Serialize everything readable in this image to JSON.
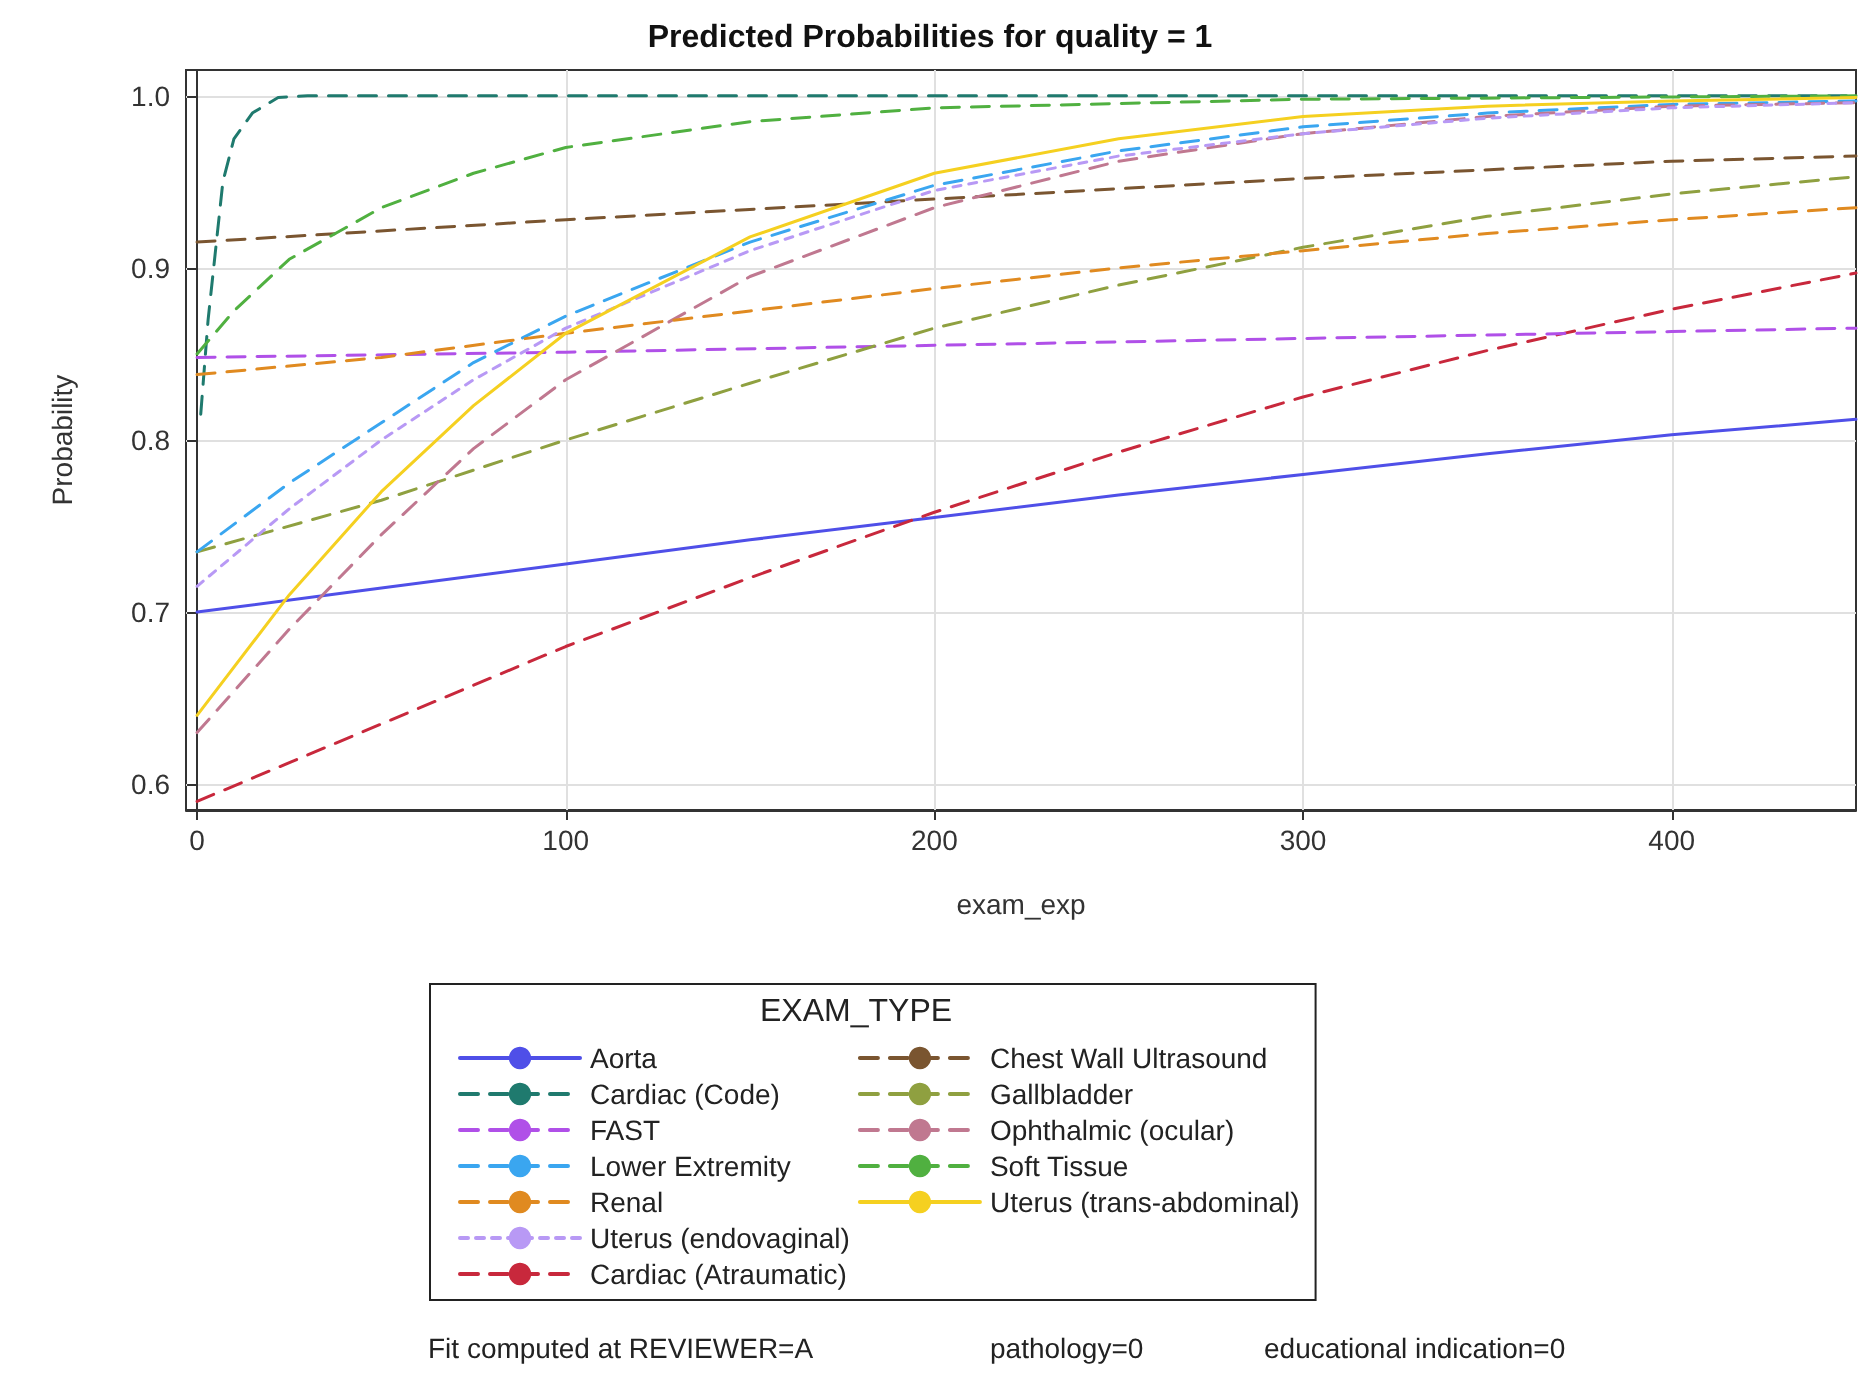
{
  "chart_data": {
    "type": "line",
    "title": "Predicted Probabilities for quality = 1",
    "xlabel": "exam_exp",
    "ylabel": "Probability",
    "legend_title": "EXAM_TYPE",
    "legend": "bottom",
    "grid": true,
    "marker": "none",
    "xlim": [
      -3,
      450
    ],
    "xticks": [
      0,
      100,
      200,
      300,
      400
    ],
    "ylim": [
      0.585,
      1.015
    ],
    "yticks": [
      0.6,
      0.7,
      0.8,
      0.9,
      {
        "value": 1,
        "label": "1.0"
      }
    ],
    "annotations": [
      "Fit computed at REVIEWER=A",
      "pathology=0",
      "educational indication=0"
    ],
    "series": [
      {
        "name": "Aorta",
        "color": "#4f4fe8",
        "line_style": "solid",
        "x": [
          0,
          50,
          100,
          150,
          200,
          250,
          300,
          350,
          400,
          450
        ],
        "values": [
          0.7,
          0.714,
          0.728,
          0.742,
          0.755,
          0.768,
          0.78,
          0.792,
          0.803,
          0.812
        ]
      },
      {
        "name": "Cardiac (Atraumatic)",
        "color": "#c8283c",
        "line_style": "dashed",
        "x": [
          0,
          50,
          100,
          150,
          200,
          250,
          300,
          350,
          400,
          450
        ],
        "values": [
          0.59,
          0.635,
          0.68,
          0.72,
          0.758,
          0.793,
          0.825,
          0.852,
          0.876,
          0.897
        ]
      },
      {
        "name": "Cardiac (Code)",
        "color": "#1f7a6e",
        "line_style": "dashed",
        "x": [
          1,
          3,
          5,
          7,
          10,
          15,
          22,
          30,
          450
        ],
        "values": [
          0.815,
          0.87,
          0.91,
          0.95,
          0.975,
          0.99,
          0.999,
          1.0,
          1.0
        ]
      },
      {
        "name": "Chest Wall Ultrasound",
        "color": "#7a5530",
        "line_style": "dashed",
        "x": [
          0,
          100,
          200,
          300,
          400,
          450
        ],
        "values": [
          0.915,
          0.928,
          0.94,
          0.952,
          0.962,
          0.965
        ]
      },
      {
        "name": "FAST",
        "color": "#b050e8",
        "line_style": "dashed",
        "x": [
          0,
          100,
          200,
          300,
          400,
          450
        ],
        "values": [
          0.848,
          0.851,
          0.855,
          0.859,
          0.863,
          0.865
        ]
      },
      {
        "name": "Gallbladder",
        "color": "#8fa040",
        "line_style": "dashed",
        "x": [
          0,
          50,
          100,
          150,
          200,
          250,
          300,
          350,
          400,
          450
        ],
        "values": [
          0.735,
          0.765,
          0.8,
          0.833,
          0.865,
          0.89,
          0.912,
          0.93,
          0.943,
          0.953
        ]
      },
      {
        "name": "Lower Extremity",
        "color": "#3aa6f0",
        "line_style": "dashed",
        "x": [
          0,
          25,
          50,
          75,
          100,
          150,
          200,
          250,
          300,
          350,
          400,
          450
        ],
        "values": [
          0.735,
          0.775,
          0.81,
          0.845,
          0.872,
          0.915,
          0.948,
          0.968,
          0.982,
          0.99,
          0.995,
          0.997
        ]
      },
      {
        "name": "Ophthalmic (ocular)",
        "color": "#c07890",
        "line_style": "dashed",
        "x": [
          0,
          25,
          50,
          75,
          100,
          150,
          200,
          250,
          300,
          350,
          400,
          450
        ],
        "values": [
          0.63,
          0.69,
          0.745,
          0.795,
          0.835,
          0.895,
          0.935,
          0.962,
          0.978,
          0.988,
          0.994,
          0.996
        ]
      },
      {
        "name": "Renal",
        "color": "#e08a20",
        "line_style": "dashed",
        "x": [
          0,
          50,
          100,
          150,
          200,
          250,
          300,
          350,
          400,
          450
        ],
        "values": [
          0.838,
          0.848,
          0.862,
          0.875,
          0.888,
          0.9,
          0.91,
          0.92,
          0.928,
          0.935
        ]
      },
      {
        "name": "Soft Tissue",
        "color": "#50b040",
        "line_style": "dashed",
        "x": [
          0,
          10,
          25,
          50,
          75,
          100,
          150,
          200,
          300,
          450
        ],
        "values": [
          0.85,
          0.875,
          0.905,
          0.935,
          0.955,
          0.97,
          0.985,
          0.993,
          0.998,
          1.0
        ]
      },
      {
        "name": "Uterus (endovaginal)",
        "color": "#b899f5",
        "line_style": "dotted",
        "x": [
          0,
          25,
          50,
          75,
          100,
          150,
          200,
          250,
          300,
          350,
          400,
          450
        ],
        "values": [
          0.715,
          0.76,
          0.8,
          0.835,
          0.865,
          0.91,
          0.945,
          0.965,
          0.978,
          0.987,
          0.993,
          0.996
        ]
      },
      {
        "name": "Uterus (trans-abdominal)",
        "color": "#f5d020",
        "line_style": "solid",
        "x": [
          0,
          25,
          50,
          75,
          100,
          150,
          200,
          250,
          300,
          350,
          400,
          450
        ],
        "values": [
          0.64,
          0.71,
          0.77,
          0.82,
          0.862,
          0.918,
          0.955,
          0.975,
          0.988,
          0.994,
          0.997,
          0.999
        ]
      }
    ]
  }
}
